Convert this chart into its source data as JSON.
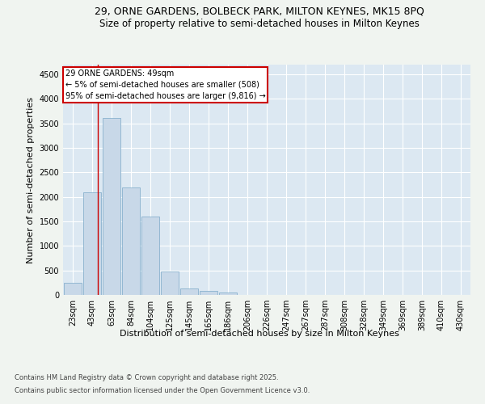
{
  "title_line1": "29, ORNE GARDENS, BOLBECK PARK, MILTON KEYNES, MK15 8PQ",
  "title_line2": "Size of property relative to semi-detached houses in Milton Keynes",
  "xlabel": "Distribution of semi-detached houses by size in Milton Keynes",
  "ylabel": "Number of semi-detached properties",
  "categories": [
    "23sqm",
    "43sqm",
    "63sqm",
    "84sqm",
    "104sqm",
    "125sqm",
    "145sqm",
    "165sqm",
    "186sqm",
    "206sqm",
    "226sqm",
    "247sqm",
    "267sqm",
    "287sqm",
    "308sqm",
    "328sqm",
    "349sqm",
    "369sqm",
    "389sqm",
    "410sqm",
    "430sqm"
  ],
  "values": [
    250,
    2100,
    3610,
    2200,
    1600,
    480,
    130,
    75,
    50,
    5,
    2,
    1,
    1,
    0,
    0,
    0,
    0,
    0,
    0,
    0,
    0
  ],
  "bar_color": "#c8d8e8",
  "bar_edge_color": "#7aa8c8",
  "highlight_line_color": "#cc0000",
  "annotation_text": "29 ORNE GARDENS: 49sqm\n← 5% of semi-detached houses are smaller (508)\n95% of semi-detached houses are larger (9,816) →",
  "annotation_box_color": "#ffffff",
  "annotation_box_edge": "#cc0000",
  "ylim": [
    0,
    4700
  ],
  "yticks": [
    0,
    500,
    1000,
    1500,
    2000,
    2500,
    3000,
    3500,
    4000,
    4500
  ],
  "bg_color": "#dce8f2",
  "footer_line1": "Contains HM Land Registry data © Crown copyright and database right 2025.",
  "footer_line2": "Contains public sector information licensed under the Open Government Licence v3.0.",
  "title_fontsize": 9,
  "subtitle_fontsize": 8.5,
  "axis_label_fontsize": 8,
  "tick_fontsize": 7,
  "annotation_fontsize": 7,
  "footer_fontsize": 6
}
